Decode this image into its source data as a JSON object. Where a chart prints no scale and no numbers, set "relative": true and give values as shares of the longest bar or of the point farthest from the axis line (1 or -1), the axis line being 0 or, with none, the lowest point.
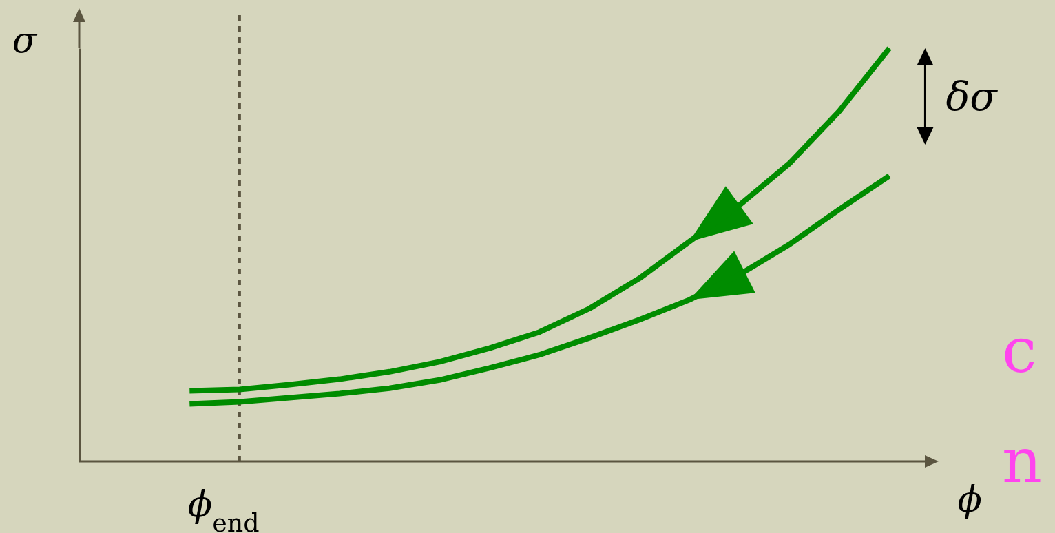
{
  "chart_data": {
    "type": "line",
    "relative": true,
    "xlabel": "ϕ",
    "ylabel": "σ",
    "grid": false,
    "legend": false,
    "marker": "none",
    "line_style": "solid",
    "categories": [
      null,
      null,
      null,
      null,
      null,
      null,
      null,
      null,
      null,
      null,
      null,
      null,
      null,
      null,
      null
    ],
    "series": [
      {
        "color": "#008c00",
        "values": [
          0.171,
          0.174,
          0.186,
          0.199,
          0.217,
          0.241,
          0.274,
          0.313,
          0.37,
          0.443,
          0.532,
          0.62,
          0.721,
          0.848,
          1.0
        ]
      },
      {
        "color": "#008c00",
        "values": [
          0.139,
          0.144,
          0.154,
          0.164,
          0.177,
          0.197,
          0.226,
          0.258,
          0.299,
          0.343,
          0.391,
          0.452,
          0.525,
          0.61,
          0.691
        ]
      }
    ],
    "annotations": [
      "ϕ$_{end}$",
      "δσ",
      "c",
      "n"
    ]
  }
}
